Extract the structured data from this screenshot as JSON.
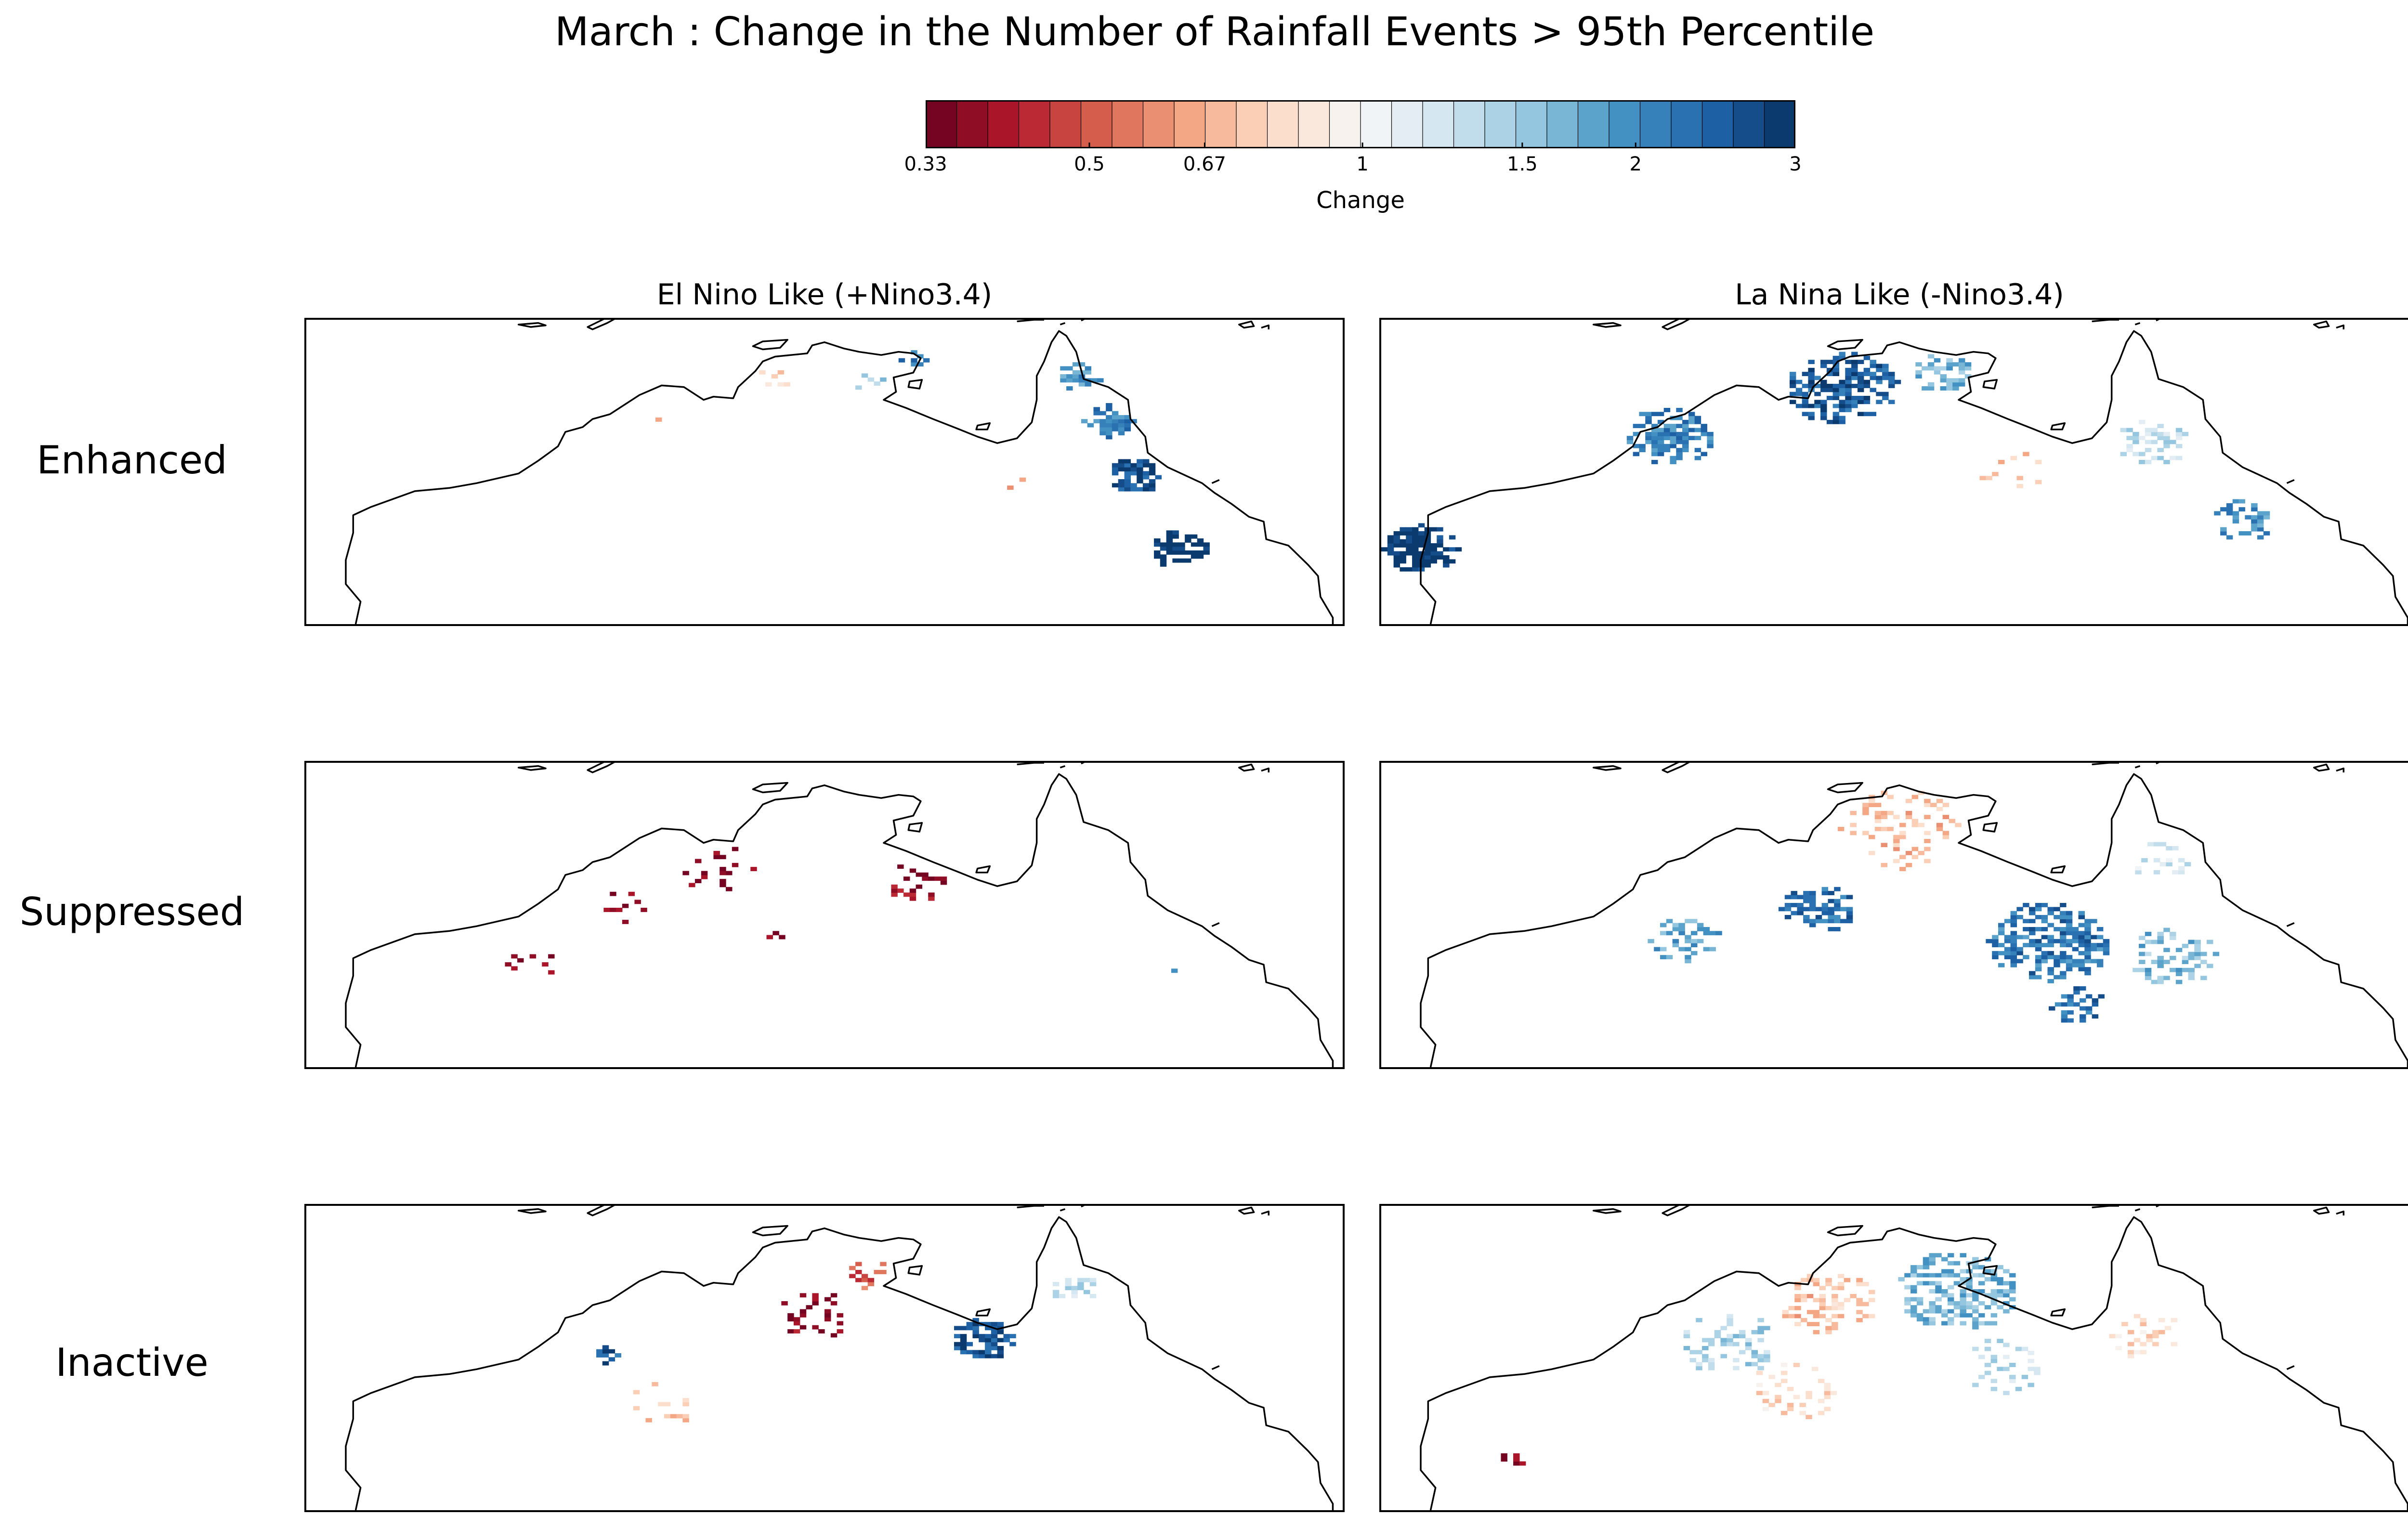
{
  "chart_data": {
    "type": "heatmap",
    "title": "March : Change in the Number of Rainfall Events > 95th Percentile",
    "column_titles": [
      "El Nino Like (+Nino3.4)",
      "La Nina Like (-Nino3.4)"
    ],
    "row_labels": [
      "Enhanced",
      "Suppressed",
      "Inactive"
    ],
    "colorbar": {
      "label": "Change",
      "scale": "log",
      "range": [
        0.33,
        3
      ],
      "tick_labels": [
        "0.33",
        "0.5",
        "0.67",
        "1",
        "1.5",
        "2",
        "3"
      ],
      "tick_values": [
        0.33,
        0.5,
        0.67,
        1,
        1.5,
        2,
        3
      ],
      "n_levels": 28,
      "colormap": "RdBu",
      "low_color": "#67001f",
      "high_color": "#053061"
    },
    "map_extent": {
      "lon": [
        112,
        154
      ],
      "lat": [
        -29,
        -10
      ]
    },
    "panels": [
      {
        "row": "Enhanced",
        "column": "El Nino Like (+Nino3.4)",
        "clusters": [
          {
            "lon": 143.2,
            "lat": -13.5,
            "r": 0.9,
            "value": 1.9,
            "density": 0.8
          },
          {
            "lon": 144.4,
            "lat": -16.2,
            "r": 1.0,
            "value": 2.1,
            "density": 0.8
          },
          {
            "lon": 145.5,
            "lat": -19.6,
            "r": 1.1,
            "value": 2.6,
            "density": 0.9
          },
          {
            "lon": 147.3,
            "lat": -24.2,
            "r": 1.2,
            "value": 3.0,
            "density": 0.9
          },
          {
            "lon": 136.5,
            "lat": -12.4,
            "r": 0.5,
            "value": 2.2,
            "density": 0.7
          },
          {
            "lon": 134.8,
            "lat": -13.8,
            "r": 0.8,
            "value": 1.4,
            "density": 0.4
          },
          {
            "lon": 130.9,
            "lat": -13.6,
            "r": 0.8,
            "value": 0.8,
            "density": 0.3
          },
          {
            "lon": 140.5,
            "lat": -20.0,
            "r": 0.6,
            "value": 0.6,
            "density": 0.5
          },
          {
            "lon": 126.0,
            "lat": -16.0,
            "r": 0.6,
            "value": 0.7,
            "density": 0.3
          }
        ]
      },
      {
        "row": "Enhanced",
        "column": "La Nina Like (-Nino3.4)",
        "clusters": [
          {
            "lon": 113.5,
            "lat": -24.2,
            "r": 1.5,
            "value": 3.0,
            "density": 0.95
          },
          {
            "lon": 123.5,
            "lat": -17.2,
            "r": 1.8,
            "value": 2.1,
            "density": 0.75
          },
          {
            "lon": 130.6,
            "lat": -14.2,
            "r": 2.3,
            "value": 2.5,
            "density": 0.8
          },
          {
            "lon": 134.6,
            "lat": -13.2,
            "r": 1.2,
            "value": 1.7,
            "density": 0.6
          },
          {
            "lon": 143.2,
            "lat": -17.5,
            "r": 1.5,
            "value": 1.3,
            "density": 0.5
          },
          {
            "lon": 146.8,
            "lat": -22.4,
            "r": 1.3,
            "value": 2.0,
            "density": 0.6
          },
          {
            "lon": 137.5,
            "lat": -19.5,
            "r": 1.5,
            "value": 0.75,
            "density": 0.2
          }
        ]
      },
      {
        "row": "Suppressed",
        "column": "El Nino Like (+Nino3.4)",
        "clusters": [
          {
            "lon": 121.0,
            "lat": -22.5,
            "r": 1.2,
            "value": 0.36,
            "density": 0.2
          },
          {
            "lon": 124.8,
            "lat": -18.8,
            "r": 1.0,
            "value": 0.36,
            "density": 0.3
          },
          {
            "lon": 128.5,
            "lat": -16.5,
            "r": 1.5,
            "value": 0.36,
            "density": 0.2
          },
          {
            "lon": 136.5,
            "lat": -17.3,
            "r": 1.3,
            "value": 0.36,
            "density": 0.3
          },
          {
            "lon": 130.8,
            "lat": -20.6,
            "r": 0.4,
            "value": 0.36,
            "density": 0.5
          },
          {
            "lon": 147.2,
            "lat": -23.2,
            "r": 0.4,
            "value": 2.0,
            "density": 0.6
          }
        ]
      },
      {
        "row": "Suppressed",
        "column": "La Nina Like (-Nino3.4)",
        "clusters": [
          {
            "lon": 129.6,
            "lat": -19.0,
            "r": 1.5,
            "value": 2.3,
            "density": 0.7
          },
          {
            "lon": 124.3,
            "lat": -21.0,
            "r": 1.5,
            "value": 1.8,
            "density": 0.5
          },
          {
            "lon": 139.0,
            "lat": -21.0,
            "r": 2.5,
            "value": 2.2,
            "density": 0.7
          },
          {
            "lon": 140.0,
            "lat": -25.0,
            "r": 1.2,
            "value": 2.3,
            "density": 0.6
          },
          {
            "lon": 144.0,
            "lat": -22.0,
            "r": 1.8,
            "value": 1.6,
            "density": 0.45
          },
          {
            "lon": 133.0,
            "lat": -14.0,
            "r": 2.5,
            "value": 0.72,
            "density": 0.35
          },
          {
            "lon": 143.5,
            "lat": -16.0,
            "r": 1.2,
            "value": 1.2,
            "density": 0.3
          }
        ]
      },
      {
        "row": "Inactive",
        "column": "El Nino Like (+Nino3.4)",
        "clusters": [
          {
            "lon": 139.3,
            "lat": -18.2,
            "r": 1.3,
            "value": 2.6,
            "density": 0.8
          },
          {
            "lon": 132.5,
            "lat": -16.7,
            "r": 1.5,
            "value": 0.36,
            "density": 0.3
          },
          {
            "lon": 134.5,
            "lat": -14.0,
            "r": 1.0,
            "value": 0.5,
            "density": 0.3
          },
          {
            "lon": 143.0,
            "lat": -15.0,
            "r": 1.0,
            "value": 1.35,
            "density": 0.35
          },
          {
            "lon": 124.0,
            "lat": -19.2,
            "r": 0.5,
            "value": 2.5,
            "density": 0.7
          },
          {
            "lon": 126.5,
            "lat": -22.0,
            "r": 1.5,
            "value": 0.72,
            "density": 0.2
          }
        ]
      },
      {
        "row": "Inactive",
        "column": "La Nina Like (-Nino3.4)",
        "clusters": [
          {
            "lon": 135.2,
            "lat": -15.2,
            "r": 2.5,
            "value": 1.7,
            "density": 0.7
          },
          {
            "lon": 130.0,
            "lat": -16.0,
            "r": 2.0,
            "value": 0.72,
            "density": 0.5
          },
          {
            "lon": 126.0,
            "lat": -18.5,
            "r": 2.0,
            "value": 1.4,
            "density": 0.45
          },
          {
            "lon": 128.5,
            "lat": -21.5,
            "r": 1.8,
            "value": 0.8,
            "density": 0.3
          },
          {
            "lon": 137.0,
            "lat": -20.0,
            "r": 1.8,
            "value": 1.3,
            "density": 0.3
          },
          {
            "lon": 143.0,
            "lat": -18.0,
            "r": 1.5,
            "value": 0.8,
            "density": 0.35
          },
          {
            "lon": 117.2,
            "lat": -25.6,
            "r": 0.6,
            "value": 0.35,
            "density": 0.6
          }
        ]
      }
    ]
  }
}
